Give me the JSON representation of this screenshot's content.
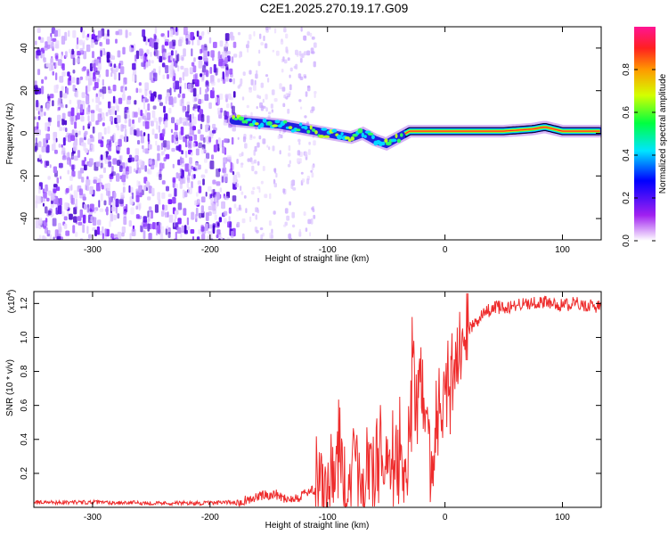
{
  "title": "C2E1.2025.270.19.17.G09",
  "chart_data": [
    {
      "type": "heatmap",
      "name": "spectrogram",
      "xlabel": "Height of straight line (km)",
      "ylabel": "Frequency (Hz)",
      "xlim": [
        -350,
        133
      ],
      "ylim": [
        -50,
        50
      ],
      "xticks": [
        -300,
        -200,
        -100,
        0,
        100
      ],
      "xtick_labels": [
        "-300",
        "-200",
        "-100",
        "0",
        "100"
      ],
      "yticks": [
        -40,
        -20,
        0,
        20,
        40
      ],
      "ytick_labels": [
        "-40",
        "-20",
        "0",
        "20",
        "40"
      ],
      "colorbar": {
        "label": "Normalized spectral amplitude",
        "range": [
          0,
          1
        ],
        "ticks": [
          0.0,
          0.2,
          0.4,
          0.6,
          0.8
        ],
        "tick_labels": [
          "0.0",
          "0.2",
          "0.4",
          "0.6",
          "0.8"
        ]
      },
      "ridge": {
        "x": [
          -180,
          -160,
          -140,
          -120,
          -100,
          -90,
          -80,
          -70,
          -60,
          -50,
          -40,
          -30,
          -20,
          0,
          50,
          75,
          85,
          100,
          133
        ],
        "freq": [
          6,
          5,
          4,
          2,
          0,
          -1,
          -2,
          0,
          -3,
          -5,
          -2,
          1,
          1,
          1,
          1,
          2,
          3,
          1,
          1
        ]
      },
      "noise_region_x": [
        -350,
        -180
      ],
      "sparse_region_x": [
        -180,
        -110
      ]
    },
    {
      "type": "line",
      "name": "snr",
      "xlabel": "Height of straight line (km)",
      "ylabel": "SNR (10 * v/v)",
      "multiplier_label": "(x10",
      "multiplier_exp": "4",
      "multiplier_close": ")",
      "xlim": [
        -350,
        133
      ],
      "ylim": [
        0,
        1.27
      ],
      "xticks": [
        -300,
        -200,
        -100,
        0,
        100
      ],
      "xtick_labels": [
        "-300",
        "-200",
        "-100",
        "0",
        "100"
      ],
      "yticks": [
        0.2,
        0.4,
        0.6,
        0.8,
        1.0,
        1.2
      ],
      "ytick_labels": [
        "0.2",
        "0.4",
        "0.6",
        "0.8",
        "1.0",
        "1.2"
      ],
      "series": [
        {
          "name": "SNR",
          "color": "#ee2c2c",
          "x": [
            -350,
            -300,
            -250,
            -200,
            -180,
            -165,
            -155,
            -145,
            -135,
            -125,
            -115,
            -105,
            -100,
            -95,
            -90,
            -85,
            -80,
            -75,
            -70,
            -65,
            -60,
            -55,
            -50,
            -45,
            -40,
            -35,
            -30,
            -27,
            -24,
            -21,
            -18,
            -15,
            -12,
            -8,
            -4,
            0,
            4,
            8,
            12,
            16,
            20,
            25,
            30,
            35,
            40,
            45,
            50,
            60,
            70,
            80,
            90,
            100,
            110,
            120,
            133
          ],
          "y": [
            0.03,
            0.03,
            0.025,
            0.025,
            0.03,
            0.05,
            0.07,
            0.08,
            0.05,
            0.06,
            0.1,
            0.08,
            0.12,
            0.18,
            0.25,
            0.15,
            0.22,
            0.3,
            0.2,
            0.28,
            0.15,
            0.4,
            0.25,
            0.2,
            0.35,
            0.12,
            0.5,
            0.85,
            0.4,
            0.9,
            0.35,
            0.6,
            0.2,
            0.45,
            0.55,
            0.6,
            0.8,
            0.75,
            0.9,
            1.0,
            1.05,
            1.08,
            1.12,
            1.15,
            1.17,
            1.18,
            1.17,
            1.19,
            1.2,
            1.21,
            1.2,
            1.19,
            1.2,
            1.19,
            1.18
          ]
        }
      ]
    }
  ]
}
